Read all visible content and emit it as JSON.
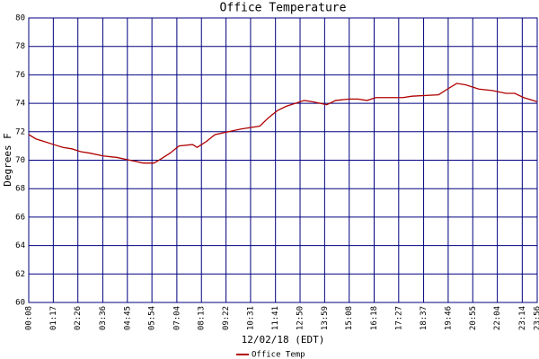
{
  "chart_data": {
    "type": "line",
    "title": "Office Temperature",
    "ylabel": "Degrees F",
    "xlabel": "12/02/18 (EDT)",
    "xlim": [
      8,
      1436
    ],
    "ylim": [
      60,
      80
    ],
    "yticks": [
      60,
      62,
      64,
      66,
      68,
      70,
      72,
      74,
      76,
      78,
      80
    ],
    "xticks": [
      {
        "value": 8,
        "label": "00:08"
      },
      {
        "value": 77,
        "label": "01:17"
      },
      {
        "value": 146,
        "label": "02:26"
      },
      {
        "value": 216,
        "label": "03:36"
      },
      {
        "value": 285,
        "label": "04:45"
      },
      {
        "value": 354,
        "label": "05:54"
      },
      {
        "value": 424,
        "label": "07:04"
      },
      {
        "value": 493,
        "label": "08:13"
      },
      {
        "value": 562,
        "label": "09:22"
      },
      {
        "value": 631,
        "label": "10:31"
      },
      {
        "value": 701,
        "label": "11:41"
      },
      {
        "value": 770,
        "label": "12:50"
      },
      {
        "value": 839,
        "label": "13:59"
      },
      {
        "value": 908,
        "label": "15:08"
      },
      {
        "value": 978,
        "label": "16:18"
      },
      {
        "value": 1047,
        "label": "17:27"
      },
      {
        "value": 1117,
        "label": "18:37"
      },
      {
        "value": 1186,
        "label": "19:46"
      },
      {
        "value": 1255,
        "label": "20:55"
      },
      {
        "value": 1324,
        "label": "22:04"
      },
      {
        "value": 1394,
        "label": "23:14"
      },
      {
        "value": 1436,
        "label": "23:56"
      }
    ],
    "grid": true,
    "x": [
      8,
      28,
      53,
      78,
      104,
      129,
      154,
      179,
      217,
      254,
      292,
      330,
      360,
      380,
      405,
      430,
      468,
      481,
      506,
      531,
      569,
      606,
      657,
      682,
      707,
      732,
      757,
      782,
      807,
      845,
      870,
      908,
      933,
      958,
      983,
      1059,
      1084,
      1159,
      1184,
      1210,
      1235,
      1272,
      1310,
      1348,
      1373,
      1398,
      1424,
      1436
    ],
    "series": [
      {
        "name": "Office Temp",
        "color": "#b00000",
        "values": [
          71.8,
          71.5,
          71.3,
          71.1,
          70.9,
          70.8,
          70.6,
          70.5,
          70.3,
          70.2,
          70.0,
          69.8,
          69.8,
          70.1,
          70.5,
          71.0,
          71.1,
          70.9,
          71.3,
          71.8,
          72.0,
          72.2,
          72.4,
          73.0,
          73.5,
          73.8,
          74.0,
          74.2,
          74.1,
          73.9,
          74.2,
          74.3,
          74.3,
          74.2,
          74.4,
          74.4,
          74.5,
          74.6,
          75.0,
          75.4,
          75.3,
          75.0,
          74.9,
          74.7,
          74.7,
          74.4,
          74.2,
          74.1
        ]
      }
    ]
  }
}
